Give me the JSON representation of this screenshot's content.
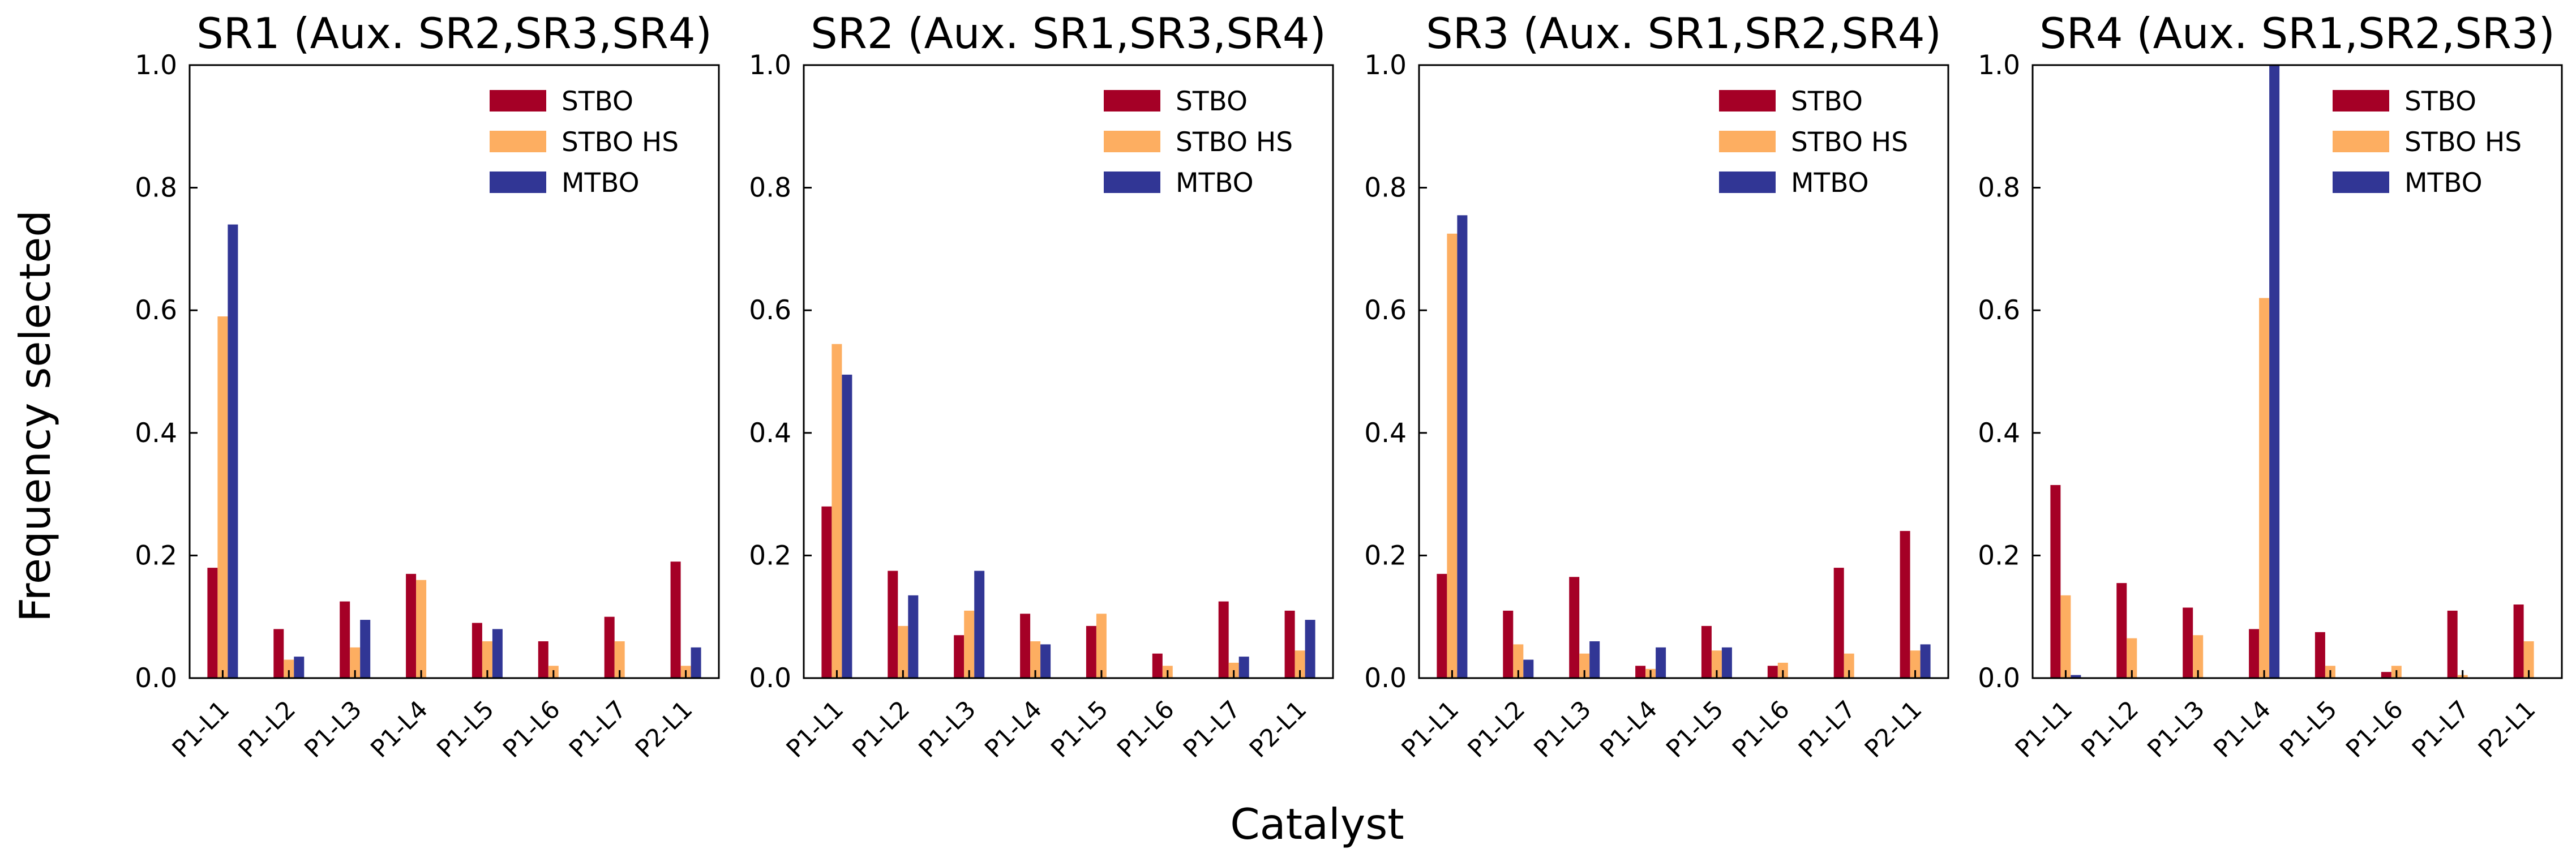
{
  "figure": {
    "xlabel": "Catalyst",
    "ylabel": "Frequency selected"
  },
  "chart_data": [
    {
      "type": "bar",
      "title": "SR1 (Aux. SR2,SR3,SR4)",
      "categories": [
        "P1-L1",
        "P1-L2",
        "P1-L3",
        "P1-L4",
        "P1-L5",
        "P1-L6",
        "P1-L7",
        "P2-L1"
      ],
      "ylim": [
        0,
        1.0
      ],
      "yticks": [
        "0.0",
        "0.2",
        "0.4",
        "0.6",
        "0.8",
        "1.0"
      ],
      "legend_position": "top-right",
      "grid": false,
      "series": [
        {
          "name": "STBO",
          "color": "#a50026",
          "values": [
            0.18,
            0.08,
            0.125,
            0.17,
            0.09,
            0.06,
            0.1,
            0.19
          ]
        },
        {
          "name": "STBO HS",
          "color": "#fdae61",
          "values": [
            0.59,
            0.03,
            0.05,
            0.16,
            0.06,
            0.02,
            0.06,
            0.02
          ]
        },
        {
          "name": "MTBO",
          "color": "#313695",
          "values": [
            0.74,
            0.035,
            0.095,
            0.0,
            0.08,
            0.0,
            0.0,
            0.05
          ]
        }
      ]
    },
    {
      "type": "bar",
      "title": "SR2 (Aux. SR1,SR3,SR4)",
      "categories": [
        "P1-L1",
        "P1-L2",
        "P1-L3",
        "P1-L4",
        "P1-L5",
        "P1-L6",
        "P1-L7",
        "P2-L1"
      ],
      "ylim": [
        0,
        1.0
      ],
      "yticks": [
        "0.0",
        "0.2",
        "0.4",
        "0.6",
        "0.8",
        "1.0"
      ],
      "legend_position": "top-right",
      "grid": false,
      "series": [
        {
          "name": "STBO",
          "color": "#a50026",
          "values": [
            0.28,
            0.175,
            0.07,
            0.105,
            0.085,
            0.04,
            0.125,
            0.11
          ]
        },
        {
          "name": "STBO HS",
          "color": "#fdae61",
          "values": [
            0.545,
            0.085,
            0.11,
            0.06,
            0.105,
            0.02,
            0.025,
            0.045
          ]
        },
        {
          "name": "MTBO",
          "color": "#313695",
          "values": [
            0.495,
            0.135,
            0.175,
            0.055,
            0.0,
            0.0,
            0.035,
            0.095
          ]
        }
      ]
    },
    {
      "type": "bar",
      "title": "SR3 (Aux. SR1,SR2,SR4)",
      "categories": [
        "P1-L1",
        "P1-L2",
        "P1-L3",
        "P1-L4",
        "P1-L5",
        "P1-L6",
        "P1-L7",
        "P2-L1"
      ],
      "ylim": [
        0,
        1.0
      ],
      "yticks": [
        "0.0",
        "0.2",
        "0.4",
        "0.6",
        "0.8",
        "1.0"
      ],
      "legend_position": "top-right",
      "grid": false,
      "series": [
        {
          "name": "STBO",
          "color": "#a50026",
          "values": [
            0.17,
            0.11,
            0.165,
            0.02,
            0.085,
            0.02,
            0.18,
            0.24
          ]
        },
        {
          "name": "STBO HS",
          "color": "#fdae61",
          "values": [
            0.725,
            0.055,
            0.04,
            0.015,
            0.045,
            0.025,
            0.04,
            0.045
          ]
        },
        {
          "name": "MTBO",
          "color": "#313695",
          "values": [
            0.755,
            0.03,
            0.06,
            0.05,
            0.05,
            0.0,
            0.0,
            0.055
          ]
        }
      ]
    },
    {
      "type": "bar",
      "title": "SR4 (Aux. SR1,SR2,SR3)",
      "categories": [
        "P1-L1",
        "P1-L2",
        "P1-L3",
        "P1-L4",
        "P1-L5",
        "P1-L6",
        "P1-L7",
        "P2-L1"
      ],
      "ylim": [
        0,
        1.0
      ],
      "yticks": [
        "0.0",
        "0.2",
        "0.4",
        "0.6",
        "0.8",
        "1.0"
      ],
      "legend_position": "top-right",
      "grid": false,
      "series": [
        {
          "name": "STBO",
          "color": "#a50026",
          "values": [
            0.315,
            0.155,
            0.115,
            0.08,
            0.075,
            0.01,
            0.11,
            0.12
          ]
        },
        {
          "name": "STBO HS",
          "color": "#fdae61",
          "values": [
            0.135,
            0.065,
            0.07,
            0.62,
            0.02,
            0.02,
            0.005,
            0.06
          ]
        },
        {
          "name": "MTBO",
          "color": "#313695",
          "values": [
            0.005,
            0.0,
            0.0,
            1.0,
            0.0,
            0.0,
            0.0,
            0.0
          ]
        }
      ]
    }
  ]
}
